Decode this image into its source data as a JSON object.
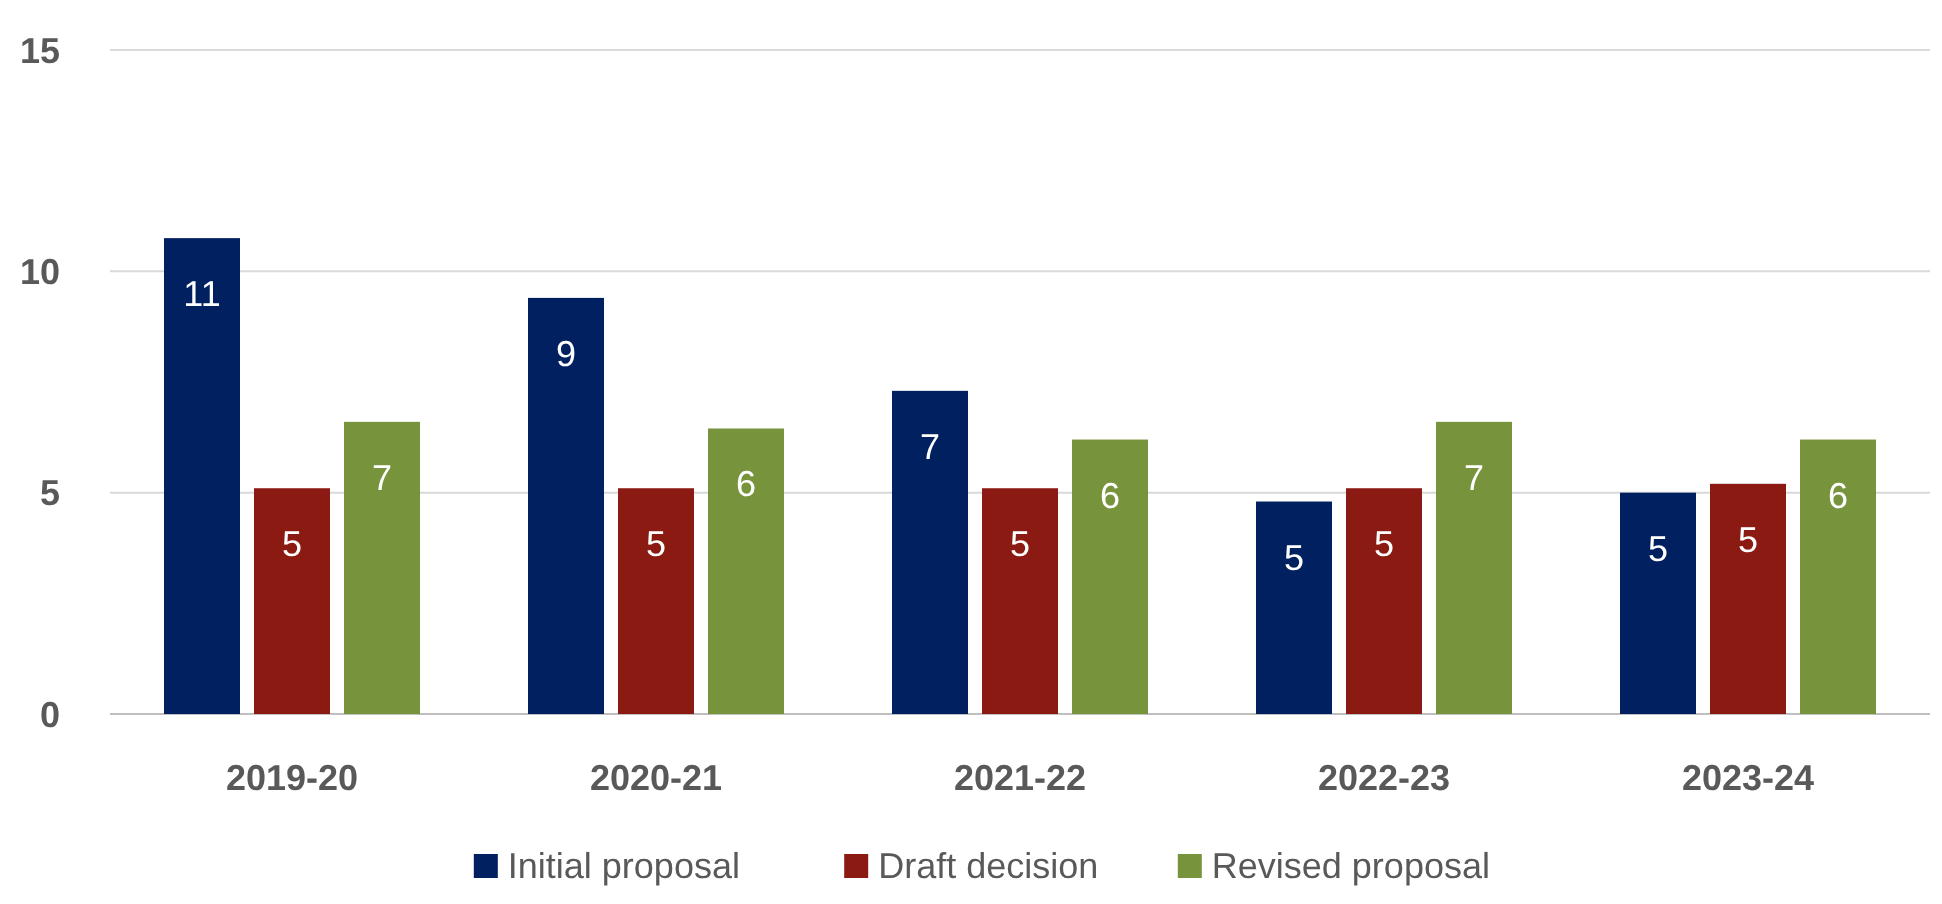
{
  "chart_data": {
    "type": "bar",
    "categories": [
      "2019-20",
      "2020-21",
      "2021-22",
      "2022-23",
      "2023-24"
    ],
    "series": [
      {
        "name": "Initial proposal",
        "color": "#002060",
        "values": [
          10.75,
          9.4,
          7.3,
          4.8,
          5.0
        ],
        "value_labels": [
          "11",
          "9",
          "7",
          "5",
          "5"
        ]
      },
      {
        "name": "Draft decision",
        "color": "#8b1a12",
        "values": [
          5.1,
          5.1,
          5.1,
          5.1,
          5.2
        ],
        "value_labels": [
          "5",
          "5",
          "5",
          "5",
          "5"
        ]
      },
      {
        "name": "Revised proposal",
        "color": "#77933c",
        "values": [
          6.6,
          6.45,
          6.2,
          6.6,
          6.2
        ],
        "value_labels": [
          "7",
          "6",
          "6",
          "7",
          "6"
        ]
      }
    ],
    "ylim": [
      0,
      15
    ],
    "yticks": [
      0,
      5,
      10,
      15
    ],
    "grid": "y",
    "legend": "bottom"
  }
}
